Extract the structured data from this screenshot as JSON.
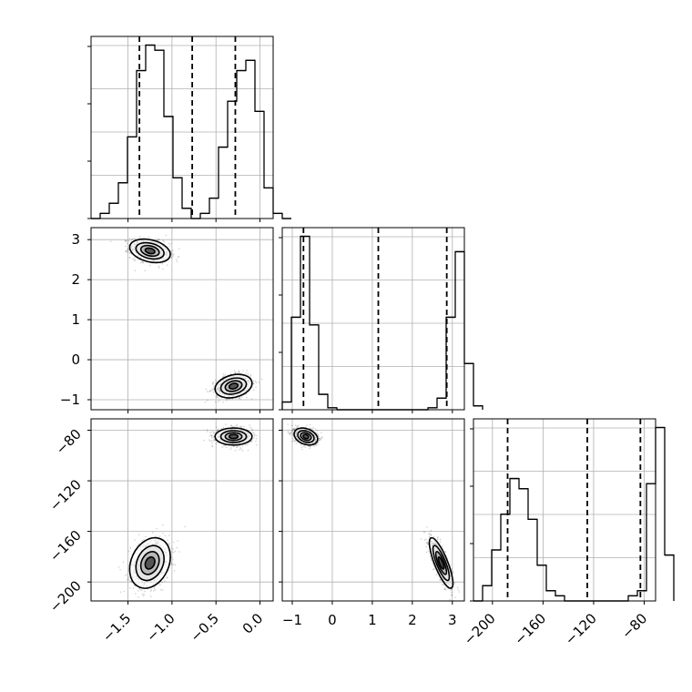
{
  "chart_data": {
    "type": "corner",
    "params": [
      {
        "ticks": [
          -1.5,
          -1.0,
          -0.5,
          0.0
        ],
        "tick_labels": [
          "−1.5",
          "−1.0",
          "−0.5",
          "0.0"
        ],
        "range": [
          -1.92,
          0.15
        ],
        "quantiles": [
          -1.37,
          -0.77,
          -0.28
        ]
      },
      {
        "ticks": [
          -1,
          0,
          1,
          2,
          3
        ],
        "tick_labels": [
          "−1",
          "0",
          "1",
          "2",
          "3"
        ],
        "range": [
          -1.25,
          3.3
        ],
        "quantiles": [
          -0.72,
          1.15,
          2.86
        ]
      },
      {
        "ticks": [
          -200,
          -160,
          -120,
          -80
        ],
        "tick_labels": [
          "−200",
          "−160",
          "−120",
          "−80"
        ],
        "range": [
          -215,
          -71
        ],
        "quantiles": [
          -188,
          -125,
          -83
        ]
      }
    ],
    "histograms": [
      {
        "edges_start": -1.92,
        "bin_width": 0.1035,
        "counts": [
          0,
          1,
          3,
          7,
          16,
          29,
          34,
          33,
          20,
          8,
          2,
          0,
          1,
          4,
          14,
          23,
          29,
          31,
          21,
          6,
          1,
          0
        ]
      },
      {
        "edges_start": -1.25,
        "bin_width": 0.2275,
        "counts": [
          2,
          24,
          45,
          22,
          4,
          0.5,
          0,
          0,
          0,
          0,
          0,
          0,
          0,
          0,
          0,
          0,
          0.5,
          3,
          24,
          41,
          12,
          1
        ]
      },
      {
        "edges_start": -215,
        "bin_width": 7.2,
        "counts": [
          0,
          3,
          10,
          17,
          24,
          22,
          16,
          7,
          2,
          1,
          0,
          0,
          0,
          0,
          0,
          0,
          0,
          1,
          2,
          23,
          34,
          9
        ]
      }
    ],
    "clusters": [
      {
        "center": [
          -1.25,
          2.72,
          -185
        ],
        "sd": [
          0.11,
          0.14,
          9.5
        ],
        "corr": [
          -0.3,
          0.25,
          -0.8
        ]
      },
      {
        "center": [
          -0.3,
          -0.66,
          -85
        ],
        "sd": [
          0.1,
          0.14,
          3.2
        ],
        "corr": [
          0.25,
          0.0,
          -0.3
        ]
      }
    ]
  }
}
